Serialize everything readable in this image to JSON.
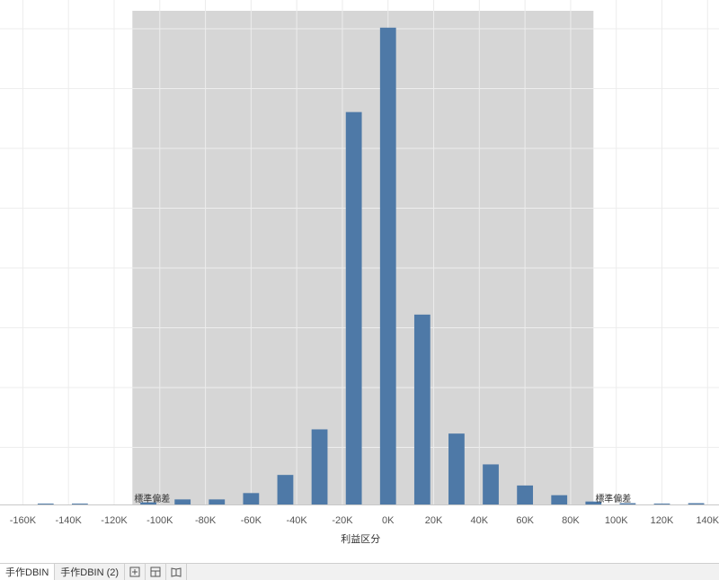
{
  "chart_data": {
    "type": "bar",
    "xlabel": "利益区分",
    "ylabel": "",
    "x_unit_suffix": "K",
    "xlim": [
      -170,
      145
    ],
    "ylim": [
      0,
      1170
    ],
    "x_ticks": [
      -160,
      -140,
      -120,
      -100,
      -80,
      -60,
      -40,
      -20,
      0,
      20,
      40,
      60,
      80,
      100,
      120,
      140
    ],
    "x_tick_labels": [
      "-160K",
      "-140K",
      "-120K",
      "-100K",
      "-80K",
      "-60K",
      "-40K",
      "-20K",
      "0K",
      "20K",
      "40K",
      "60K",
      "80K",
      "100K",
      "120K",
      "140K"
    ],
    "grid": true,
    "series": [
      {
        "color": "#4e79a7",
        "points": [
          {
            "x": -150,
            "y": 2
          },
          {
            "x": -135,
            "y": 2
          },
          {
            "x": -105,
            "y": 5
          },
          {
            "x": -90,
            "y": 12
          },
          {
            "x": -75,
            "y": 12
          },
          {
            "x": -60,
            "y": 27
          },
          {
            "x": -45,
            "y": 70
          },
          {
            "x": -30,
            "y": 178
          },
          {
            "x": -15,
            "y": 930
          },
          {
            "x": 0,
            "y": 1130
          },
          {
            "x": 15,
            "y": 450
          },
          {
            "x": 30,
            "y": 168
          },
          {
            "x": 45,
            "y": 95
          },
          {
            "x": 60,
            "y": 45
          },
          {
            "x": 75,
            "y": 22
          },
          {
            "x": 90,
            "y": 7
          },
          {
            "x": 105,
            "y": 3
          },
          {
            "x": 120,
            "y": 2
          },
          {
            "x": 135,
            "y": 3
          }
        ]
      }
    ],
    "reference_band": {
      "from": -112,
      "to": 90,
      "color": "#d6d6d6",
      "label_left": "標準偏差",
      "label_right": "標準偏差"
    }
  },
  "tabs": [
    {
      "label": "手作DBIN",
      "active": true
    },
    {
      "label": "手作DBIN (2)",
      "active": false
    }
  ],
  "tab_icons": [
    "new-worksheet-icon",
    "new-dashboard-icon",
    "new-story-icon"
  ]
}
